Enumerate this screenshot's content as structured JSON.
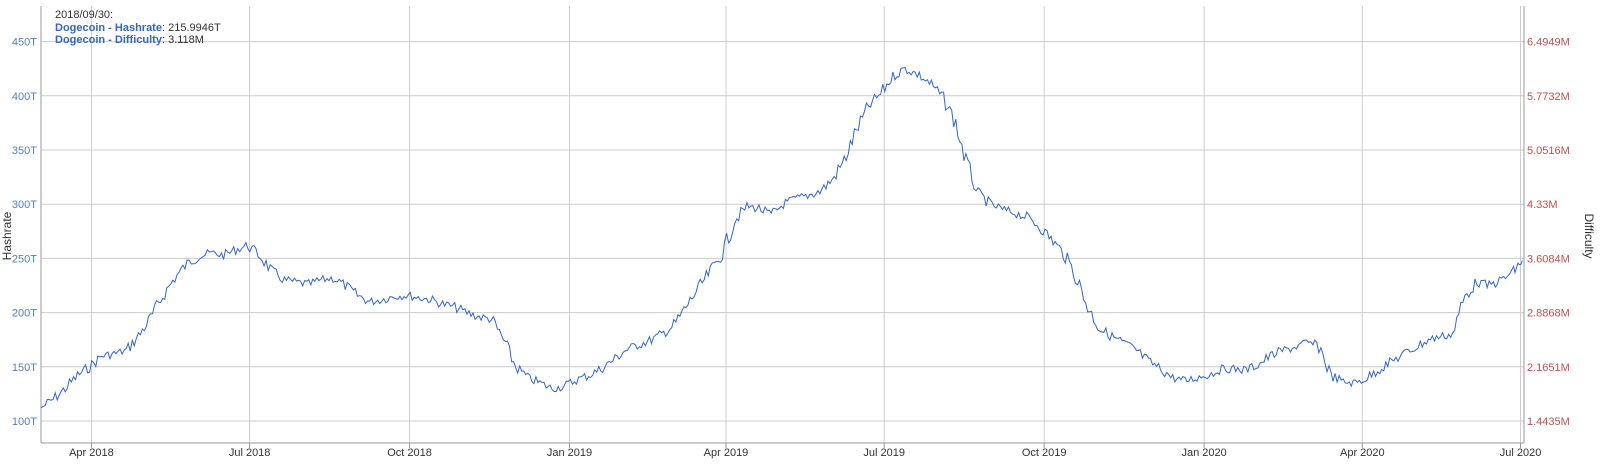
{
  "tooltip": {
    "date": "2018/09/30:",
    "hashrate_label": "Dogecoin - Hashrate",
    "hashrate_value": "215.9946T",
    "difficulty_label": "Dogecoin - Difficulty",
    "difficulty_value": "3.118M"
  },
  "colors": {
    "line": "#3366cc",
    "left_axis": "#5580b8",
    "right_axis": "#c0504d",
    "grid": "#cccccc"
  },
  "chart_data": {
    "type": "line",
    "grid": true,
    "legend": "top-left",
    "ylabel": "Hashrate",
    "y2label": "Difficulty",
    "ylim": [
      80,
      460
    ],
    "yticks": [
      "100T",
      "150T",
      "200T",
      "250T",
      "300T",
      "350T",
      "400T",
      "450T"
    ],
    "y2ticks": [
      "1.4435M",
      "2.1651M",
      "2.8868M",
      "3.6084M",
      "4.33M",
      "5.0516M",
      "5.7732M",
      "6.4949M"
    ],
    "xticks": [
      {
        "label": "Apr 2018",
        "date": "2018-04-01"
      },
      {
        "label": "Jul 2018",
        "date": "2018-07-01"
      },
      {
        "label": "Oct 2018",
        "date": "2018-10-01"
      },
      {
        "label": "Jan 2019",
        "date": "2019-01-01"
      },
      {
        "label": "Apr 2019",
        "date": "2019-04-01"
      },
      {
        "label": "Jul 2019",
        "date": "2019-07-01"
      },
      {
        "label": "Oct 2019",
        "date": "2019-10-01"
      },
      {
        "label": "Jan 2020",
        "date": "2020-01-01"
      },
      {
        "label": "Apr 2020",
        "date": "2020-04-01"
      },
      {
        "label": "Jul 2020",
        "date": "2020-07-01"
      }
    ],
    "xlim": [
      "2018-03-03",
      "2020-07-03"
    ],
    "series": [
      {
        "name": "Dogecoin - Hashrate",
        "points": [
          [
            "2018-03-03",
            112
          ],
          [
            "2018-03-10",
            120
          ],
          [
            "2018-03-17",
            130
          ],
          [
            "2018-03-24",
            142
          ],
          [
            "2018-03-31",
            150
          ],
          [
            "2018-04-07",
            160
          ],
          [
            "2018-04-14",
            162
          ],
          [
            "2018-04-21",
            165
          ],
          [
            "2018-04-28",
            178
          ],
          [
            "2018-05-05",
            195
          ],
          [
            "2018-05-12",
            215
          ],
          [
            "2018-05-19",
            232
          ],
          [
            "2018-05-26",
            245
          ],
          [
            "2018-06-02",
            252
          ],
          [
            "2018-06-09",
            255
          ],
          [
            "2018-06-16",
            253
          ],
          [
            "2018-06-23",
            258
          ],
          [
            "2018-06-30",
            262
          ],
          [
            "2018-07-07",
            252
          ],
          [
            "2018-07-14",
            238
          ],
          [
            "2018-07-21",
            230
          ],
          [
            "2018-07-28",
            228
          ],
          [
            "2018-08-04",
            226
          ],
          [
            "2018-08-11",
            230
          ],
          [
            "2018-08-18",
            232
          ],
          [
            "2018-08-25",
            225
          ],
          [
            "2018-09-01",
            216
          ],
          [
            "2018-09-08",
            210
          ],
          [
            "2018-09-15",
            212
          ],
          [
            "2018-09-22",
            215
          ],
          [
            "2018-09-29",
            216
          ],
          [
            "2018-10-06",
            214
          ],
          [
            "2018-10-13",
            212
          ],
          [
            "2018-10-20",
            208
          ],
          [
            "2018-10-27",
            205
          ],
          [
            "2018-11-03",
            200
          ],
          [
            "2018-11-10",
            196
          ],
          [
            "2018-11-17",
            194
          ],
          [
            "2018-11-24",
            175
          ],
          [
            "2018-12-01",
            150
          ],
          [
            "2018-12-08",
            140
          ],
          [
            "2018-12-15",
            135
          ],
          [
            "2018-12-22",
            130
          ],
          [
            "2018-12-29",
            132
          ],
          [
            "2019-01-05",
            138
          ],
          [
            "2019-01-12",
            142
          ],
          [
            "2019-01-19",
            148
          ],
          [
            "2019-01-26",
            156
          ],
          [
            "2019-02-02",
            165
          ],
          [
            "2019-02-09",
            170
          ],
          [
            "2019-02-16",
            174
          ],
          [
            "2019-02-23",
            180
          ],
          [
            "2019-03-02",
            188
          ],
          [
            "2019-03-09",
            205
          ],
          [
            "2019-03-16",
            222
          ],
          [
            "2019-03-23",
            238
          ],
          [
            "2019-03-30",
            255
          ],
          [
            "2019-04-06",
            285
          ],
          [
            "2019-04-13",
            298
          ],
          [
            "2019-04-20",
            296
          ],
          [
            "2019-04-27",
            290
          ],
          [
            "2019-05-04",
            300
          ],
          [
            "2019-05-11",
            305
          ],
          [
            "2019-05-18",
            308
          ],
          [
            "2019-05-25",
            312
          ],
          [
            "2019-06-01",
            322
          ],
          [
            "2019-06-08",
            340
          ],
          [
            "2019-06-15",
            368
          ],
          [
            "2019-06-22",
            390
          ],
          [
            "2019-06-29",
            402
          ],
          [
            "2019-07-06",
            418
          ],
          [
            "2019-07-13",
            425
          ],
          [
            "2019-07-20",
            420
          ],
          [
            "2019-07-27",
            412
          ],
          [
            "2019-08-03",
            400
          ],
          [
            "2019-08-10",
            380
          ],
          [
            "2019-08-17",
            340
          ],
          [
            "2019-08-24",
            310
          ],
          [
            "2019-08-31",
            300
          ],
          [
            "2019-09-07",
            295
          ],
          [
            "2019-09-14",
            292
          ],
          [
            "2019-09-21",
            288
          ],
          [
            "2019-09-28",
            280
          ],
          [
            "2019-10-05",
            268
          ],
          [
            "2019-10-12",
            255
          ],
          [
            "2019-10-19",
            235
          ],
          [
            "2019-10-26",
            205
          ],
          [
            "2019-11-02",
            185
          ],
          [
            "2019-11-09",
            178
          ],
          [
            "2019-11-16",
            172
          ],
          [
            "2019-11-23",
            165
          ],
          [
            "2019-11-30",
            155
          ],
          [
            "2019-12-07",
            148
          ],
          [
            "2019-12-14",
            140
          ],
          [
            "2019-12-21",
            137
          ],
          [
            "2019-12-28",
            140
          ],
          [
            "2020-01-04",
            143
          ],
          [
            "2020-01-11",
            148
          ],
          [
            "2020-01-18",
            148
          ],
          [
            "2020-01-25",
            147
          ],
          [
            "2020-02-01",
            152
          ],
          [
            "2020-02-08",
            160
          ],
          [
            "2020-02-15",
            165
          ],
          [
            "2020-02-22",
            168
          ],
          [
            "2020-02-29",
            172
          ],
          [
            "2020-03-07",
            170
          ],
          [
            "2020-03-14",
            142
          ],
          [
            "2020-03-21",
            136
          ],
          [
            "2020-03-28",
            135
          ],
          [
            "2020-04-04",
            140
          ],
          [
            "2020-04-11",
            148
          ],
          [
            "2020-04-18",
            155
          ],
          [
            "2020-04-25",
            162
          ],
          [
            "2020-05-02",
            168
          ],
          [
            "2020-05-09",
            175
          ],
          [
            "2020-05-16",
            178
          ],
          [
            "2020-05-23",
            180
          ],
          [
            "2020-05-30",
            215
          ],
          [
            "2020-06-06",
            228
          ],
          [
            "2020-06-13",
            225
          ],
          [
            "2020-06-20",
            230
          ],
          [
            "2020-06-27",
            238
          ],
          [
            "2020-07-02",
            248
          ]
        ]
      }
    ]
  }
}
